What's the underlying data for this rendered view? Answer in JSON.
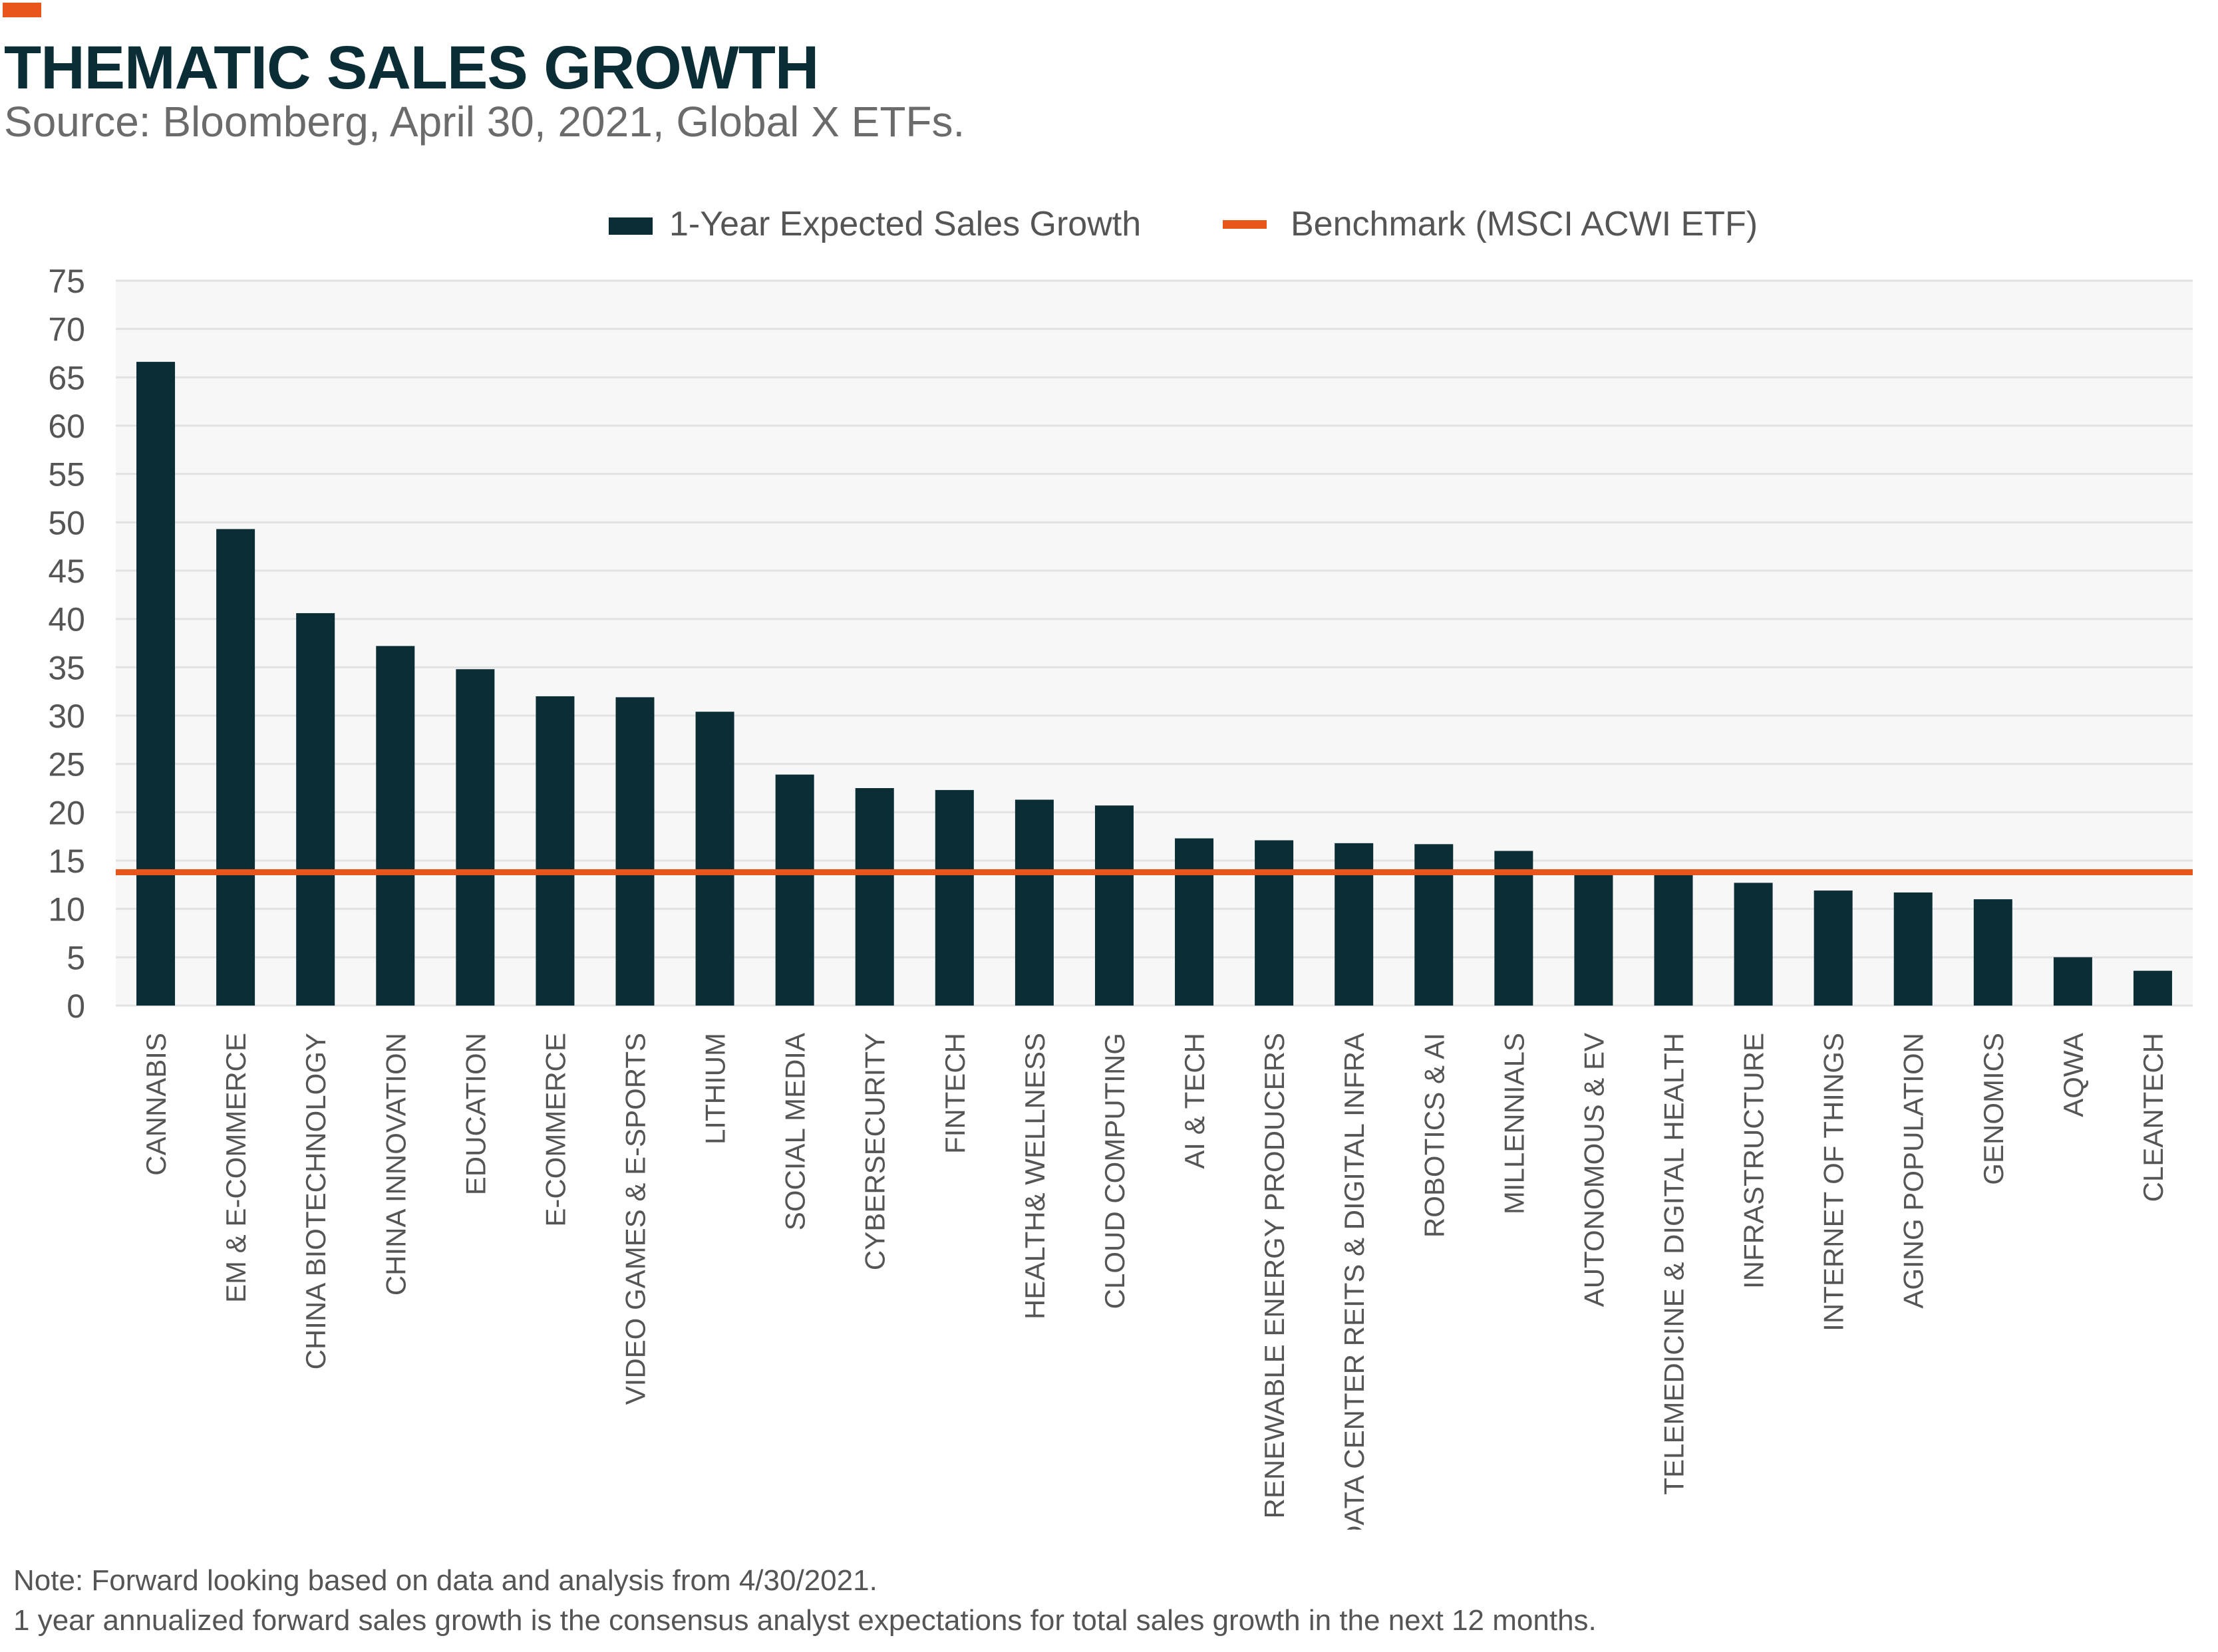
{
  "header": {
    "title": "THEMATIC SALES GROWTH",
    "source": "Source: Bloomberg, April 30, 2021, Global X ETFs."
  },
  "notes": {
    "line1": "Note: Forward looking based on data and analysis from 4/30/2021.",
    "line2": "1 year annualized forward sales growth is the consensus analyst expectations for total sales growth in the next 12 months."
  },
  "colors": {
    "bar": "#0b2e36",
    "benchmark": "#e8561b",
    "title": "#0b2e36",
    "plot_bg": "#f7f7f7",
    "grid": "#e2e2e2",
    "axis_text": "#555555"
  },
  "chart_data": {
    "type": "bar",
    "title": "",
    "xlabel": "",
    "ylabel": "",
    "ylim": [
      0,
      75
    ],
    "yticks": [
      0,
      5,
      10,
      15,
      20,
      25,
      30,
      35,
      40,
      45,
      50,
      55,
      60,
      65,
      70,
      75
    ],
    "grid": true,
    "legend_position": "top-center",
    "categories": [
      "CANNABIS",
      "EM & E-COMMERCE",
      "CHINA BIOTECHNOLOGY",
      "CHINA INNOVATION",
      "EDUCATION",
      "E-COMMERCE",
      "VIDEO GAMES & E-SPORTS",
      "LITHIUM",
      "SOCIAL MEDIA",
      "CYBERSECURITY",
      "FINTECH",
      "HEALTH& WELLNESS",
      "CLOUD COMPUTING",
      "AI & TECH",
      "RENEWABLE ENERGY PRODUCERS",
      "DATA CENTER REITS & DIGITAL INFRA",
      "ROBOTICS & AI",
      "MILLENNIALS",
      "AUTONOMOUS & EV",
      "TELEMEDICINE & DIGITAL HEALTH",
      "INFRASTRUCTURE",
      "INTERNET OF THINGS",
      "AGING POPULATION",
      "GENOMICS",
      "AQWA",
      "CLEANTECH"
    ],
    "series": [
      {
        "name": "1-Year Expected Sales Growth",
        "type": "bar",
        "values": [
          66.6,
          49.3,
          40.6,
          37.2,
          34.8,
          32.0,
          31.9,
          30.4,
          23.9,
          22.5,
          22.3,
          21.3,
          20.7,
          17.3,
          17.1,
          16.8,
          16.7,
          16.0,
          13.6,
          13.5,
          12.7,
          11.9,
          11.7,
          11.0,
          5.0,
          3.6
        ]
      },
      {
        "name": "Benchmark (MSCI ACWI ETF)",
        "type": "line",
        "value": 13.8
      }
    ]
  }
}
